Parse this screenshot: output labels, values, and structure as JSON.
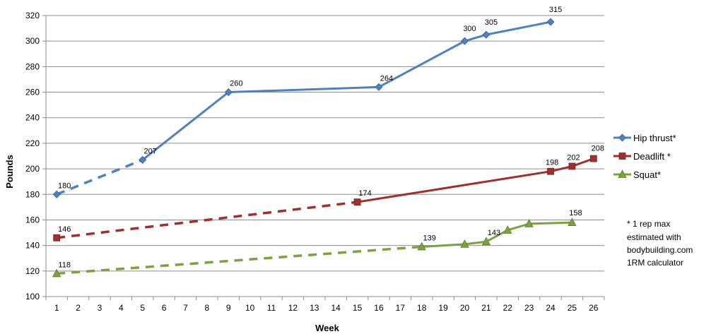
{
  "chart_data": {
    "type": "line",
    "xlabel": "Week",
    "ylabel": "Pounds",
    "xlim": [
      1,
      26
    ],
    "ylim": [
      100,
      320
    ],
    "x_ticks": [
      1,
      2,
      3,
      4,
      5,
      6,
      7,
      8,
      9,
      10,
      11,
      12,
      13,
      14,
      15,
      16,
      17,
      18,
      19,
      20,
      21,
      22,
      23,
      24,
      25,
      26
    ],
    "y_ticks": [
      100,
      120,
      140,
      160,
      180,
      200,
      220,
      240,
      260,
      280,
      300,
      320
    ],
    "grid": "horizontal",
    "legend_position": "right",
    "footnote": [
      "* 1 rep max",
      "estimated with",
      "bodybuilding.com",
      "1RM calculator"
    ],
    "series": [
      {
        "name": "Hip thrust*",
        "color": "#4f81bd",
        "marker": "diamond",
        "points": [
          {
            "x": 1,
            "y": 180,
            "label": "180"
          },
          {
            "x": 5,
            "y": 207,
            "label": "207"
          },
          {
            "x": 9,
            "y": 260,
            "label": "260"
          },
          {
            "x": 16,
            "y": 264,
            "label": "264"
          },
          {
            "x": 20,
            "y": 300,
            "label": "300"
          },
          {
            "x": 21,
            "y": 305,
            "label": "305"
          },
          {
            "x": 24,
            "y": 315,
            "label": "315"
          }
        ],
        "dashed_until_x": 5
      },
      {
        "name": "Deadlift *",
        "color": "#a0302c",
        "marker": "square",
        "points": [
          {
            "x": 1,
            "y": 146,
            "label": "146"
          },
          {
            "x": 15,
            "y": 174,
            "label": "174"
          },
          {
            "x": 24,
            "y": 198,
            "label": "198"
          },
          {
            "x": 25,
            "y": 202,
            "label": "202"
          },
          {
            "x": 26,
            "y": 208,
            "label": "208"
          }
        ],
        "dashed_until_x": 15
      },
      {
        "name": "Squat*",
        "color": "#7ba23f",
        "marker": "triangle",
        "points": [
          {
            "x": 1,
            "y": 118,
            "label": "118"
          },
          {
            "x": 18,
            "y": 139,
            "label": "139"
          },
          {
            "x": 20,
            "y": 141,
            "label": ""
          },
          {
            "x": 21,
            "y": 143,
            "label": "143"
          },
          {
            "x": 22,
            "y": 152,
            "label": ""
          },
          {
            "x": 23,
            "y": 157,
            "label": ""
          },
          {
            "x": 25,
            "y": 158,
            "label": "158"
          }
        ],
        "dashed_until_x": 18
      }
    ]
  }
}
